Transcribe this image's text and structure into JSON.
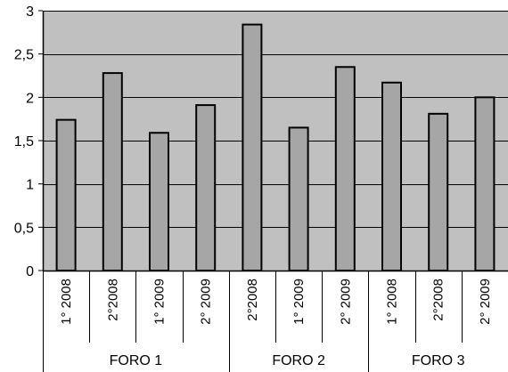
{
  "chart_data": {
    "type": "bar",
    "categories": [
      "1° 2008",
      "2°2008",
      "1° 2009",
      "2° 2009",
      "2°2008",
      "1° 2009",
      "2° 2009",
      "1° 2008",
      "2°2008",
      "2° 2009"
    ],
    "groups": [
      {
        "label": "FORO 1",
        "count": 4
      },
      {
        "label": "FORO 2",
        "count": 3
      },
      {
        "label": "FORO 3",
        "count": 3
      }
    ],
    "values": [
      1.74,
      2.28,
      1.59,
      1.91,
      2.84,
      1.65,
      2.35,
      2.17,
      1.81,
      2.0
    ],
    "ylim": [
      0,
      3
    ],
    "yticks": [
      0,
      0.5,
      1,
      1.5,
      2,
      2.5,
      3
    ],
    "ytick_labels": [
      "0",
      "0,5",
      "1",
      "1,5",
      "2",
      "2,5",
      "3"
    ],
    "title": "",
    "xlabel": "",
    "ylabel": "",
    "grid": true,
    "legend": "none",
    "colors": {
      "plot_background": "#c0c0c0",
      "bar_fill": "#a6a6a6",
      "bar_stroke": "#000000",
      "gridline": "#000000"
    }
  }
}
